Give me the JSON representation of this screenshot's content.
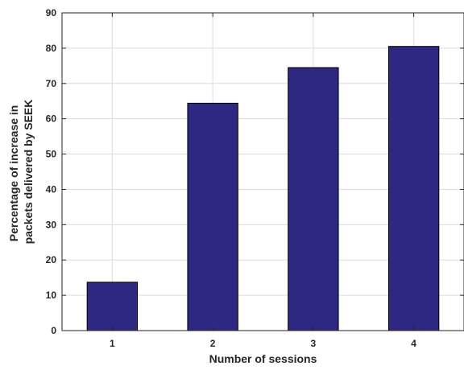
{
  "chart_data": {
    "type": "bar",
    "title": "",
    "xlabel": "Number of sessions",
    "ylabel_lines": [
      "Percentage of increase in",
      "packets delivered by SEEK"
    ],
    "categories": [
      "1",
      "2",
      "3",
      "4"
    ],
    "values": [
      13.7,
      64.4,
      74.5,
      80.5
    ],
    "ylim": [
      0,
      90
    ],
    "yticks": [
      "0",
      "10",
      "20",
      "30",
      "40",
      "50",
      "60",
      "70",
      "80",
      "90"
    ],
    "grid": true,
    "bar_color": "#2e2882"
  }
}
